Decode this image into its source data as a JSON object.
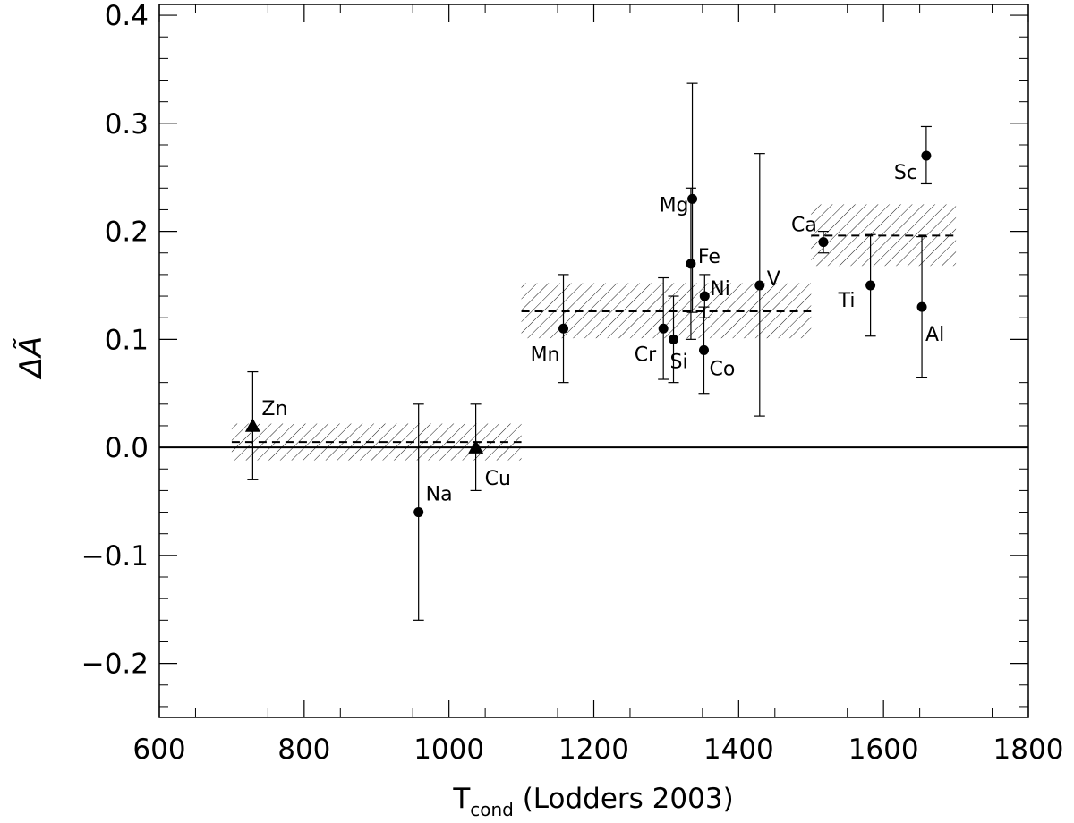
{
  "chart_data": {
    "type": "scatter",
    "title": "",
    "xlabel": "T",
    "xlabel_sub": "cond",
    "xlabel_suffix": " (Lodders 2003)",
    "ylabel": "ΔÃ",
    "xlim": [
      600,
      1800
    ],
    "ylim": [
      -0.25,
      0.41
    ],
    "xticks": [
      600,
      800,
      1000,
      1200,
      1400,
      1600,
      1800
    ],
    "xtick_labels": [
      "600",
      "800",
      "1000",
      "1200",
      "1400",
      "1600",
      "1800"
    ],
    "yticks": [
      -0.2,
      -0.1,
      0.0,
      0.1,
      0.2,
      0.3,
      0.4
    ],
    "ytick_labels": [
      "−0.2",
      "−0.1",
      "0.0",
      "0.1",
      "0.2",
      "0.3",
      "0.4"
    ],
    "grid": false,
    "zero_line": 0.0,
    "points": [
      {
        "label": "Zn",
        "x": 729,
        "y": 0.02,
        "err_low": -0.03,
        "err_high": 0.07,
        "marker": "triangle"
      },
      {
        "label": "Na",
        "x": 958,
        "y": -0.06,
        "err_low": -0.16,
        "err_high": 0.04,
        "marker": "circle"
      },
      {
        "label": "Cu",
        "x": 1037,
        "y": 0.0,
        "err_low": -0.04,
        "err_high": 0.04,
        "marker": "triangle"
      },
      {
        "label": "Mn",
        "x": 1158,
        "y": 0.11,
        "err_low": 0.06,
        "err_high": 0.16,
        "marker": "circle"
      },
      {
        "label": "Cr",
        "x": 1296,
        "y": 0.11,
        "err_low": 0.063,
        "err_high": 0.157,
        "marker": "circle"
      },
      {
        "label": "Si",
        "x": 1310,
        "y": 0.1,
        "err_low": 0.06,
        "err_high": 0.14,
        "marker": "circle"
      },
      {
        "label": "Mg",
        "x": 1336,
        "y": 0.23,
        "err_low": 0.125,
        "err_high": 0.337,
        "marker": "circle"
      },
      {
        "label": "Fe",
        "x": 1334,
        "y": 0.17,
        "err_low": 0.1,
        "err_high": 0.24,
        "marker": "circle"
      },
      {
        "label": "Ni",
        "x": 1353,
        "y": 0.14,
        "err_low": 0.12,
        "err_high": 0.16,
        "marker": "circle"
      },
      {
        "label": "Co",
        "x": 1352,
        "y": 0.09,
        "err_low": 0.05,
        "err_high": 0.13,
        "marker": "circle"
      },
      {
        "label": "V",
        "x": 1429,
        "y": 0.15,
        "err_low": 0.029,
        "err_high": 0.272,
        "marker": "circle"
      },
      {
        "label": "Ca",
        "x": 1517,
        "y": 0.19,
        "err_low": 0.18,
        "err_high": 0.2,
        "marker": "circle"
      },
      {
        "label": "Ti",
        "x": 1582,
        "y": 0.15,
        "err_low": 0.103,
        "err_high": 0.197,
        "marker": "circle"
      },
      {
        "label": "Al",
        "x": 1653,
        "y": 0.13,
        "err_low": 0.065,
        "err_high": 0.195,
        "marker": "circle"
      },
      {
        "label": "Sc",
        "x": 1659,
        "y": 0.27,
        "err_low": 0.244,
        "err_high": 0.297,
        "marker": "circle"
      }
    ],
    "bands": [
      {
        "x_start": 700,
        "x_end": 1100,
        "mean": 0.005,
        "low": -0.012,
        "high": 0.022
      },
      {
        "x_start": 1100,
        "x_end": 1500,
        "mean": 0.126,
        "low": 0.101,
        "high": 0.152
      },
      {
        "x_start": 1500,
        "x_end": 1700,
        "mean": 0.196,
        "low": 0.168,
        "high": 0.225
      }
    ]
  }
}
